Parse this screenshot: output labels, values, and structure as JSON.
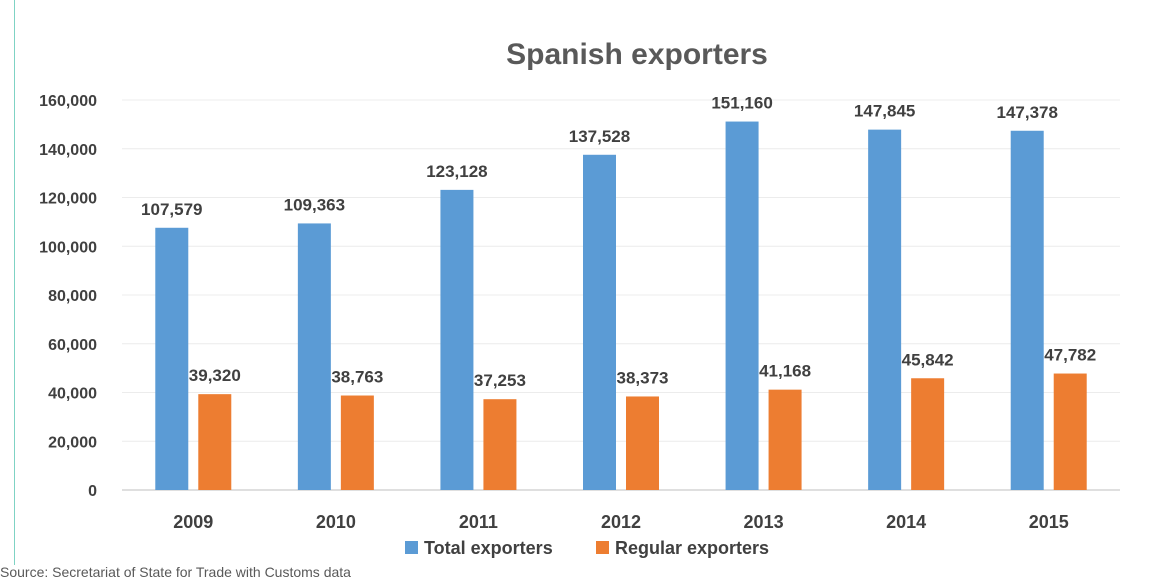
{
  "chart_data": {
    "type": "bar",
    "title": "Spanish exporters",
    "xlabel": "",
    "ylabel": "",
    "categories": [
      "2009",
      "2010",
      "2011",
      "2012",
      "2013",
      "2014",
      "2015"
    ],
    "series": [
      {
        "name": "Total exporters",
        "color": "#5b9bd5",
        "values": [
          107579,
          109363,
          123128,
          137528,
          151160,
          147845,
          147378
        ],
        "labels": [
          "107,579",
          "109,363",
          "123,128",
          "137,528",
          "151,160",
          "147,845",
          "147,378"
        ]
      },
      {
        "name": "Regular exporters",
        "color": "#ed7d31",
        "values": [
          39320,
          38763,
          37253,
          38373,
          41168,
          45842,
          47782
        ],
        "labels": [
          "39,320",
          "38,763",
          "37,253",
          "38,373",
          "41,168",
          "45,842",
          "47,782"
        ]
      }
    ],
    "ylim": [
      0,
      160000
    ],
    "yticks": [
      0,
      20000,
      40000,
      60000,
      80000,
      100000,
      120000,
      140000,
      160000
    ],
    "ytick_labels": [
      "0",
      "20,000",
      "40,000",
      "60,000",
      "80,000",
      "100,000",
      "120,000",
      "140,000",
      "160,000"
    ],
    "grid": true,
    "legend_position": "bottom"
  },
  "source_note": "Source: Secretariat of State for Trade with Customs data"
}
